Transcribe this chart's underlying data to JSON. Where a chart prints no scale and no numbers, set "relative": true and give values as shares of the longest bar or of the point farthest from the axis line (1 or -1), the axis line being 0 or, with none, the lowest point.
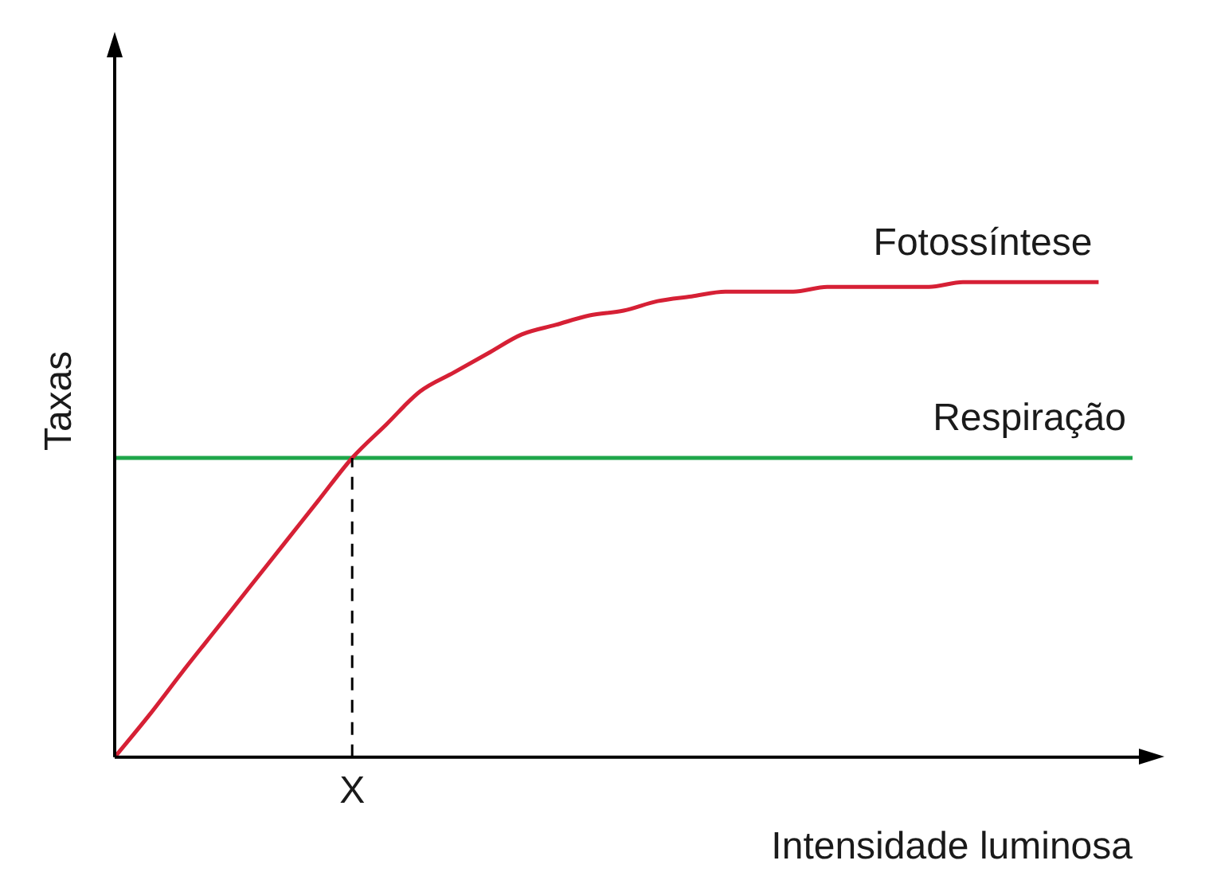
{
  "chart_data": {
    "type": "line",
    "relative": true,
    "xlabel": "Intensidade luminosa",
    "ylabel": "Taxas",
    "categories": [
      null,
      null,
      null,
      null,
      null,
      null,
      null,
      null,
      null,
      null,
      null,
      null,
      null,
      null,
      null,
      null,
      null,
      null,
      null,
      null,
      null,
      null,
      null,
      null,
      null,
      null,
      null,
      null,
      null,
      null,
      null
    ],
    "series": [
      {
        "name": "Fotossíntese",
        "color": "#d62035",
        "values": [
          0,
          0.087,
          0.18,
          0.27,
          0.36,
          0.45,
          0.54,
          0.63,
          0.7,
          0.77,
          0.81,
          0.85,
          0.89,
          0.91,
          0.93,
          0.94,
          0.96,
          0.97,
          0.98,
          0.98,
          0.98,
          0.99,
          0.99,
          0.99,
          0.99,
          1,
          1,
          1,
          1,
          1,
          null
        ]
      },
      {
        "name": "Respiração",
        "color": "#1fa64a",
        "values": [
          0.63,
          0.63,
          0.63,
          0.63,
          0.63,
          0.63,
          0.63,
          0.63,
          0.63,
          0.63,
          0.63,
          0.63,
          0.63,
          0.63,
          0.63,
          0.63,
          0.63,
          0.63,
          0.63,
          0.63,
          0.63,
          0.63,
          0.63,
          0.63,
          0.63,
          0.63,
          0.63,
          0.63,
          0.63,
          0.63,
          0.63
        ]
      }
    ],
    "ref_lines": [
      {
        "axis": "x",
        "label": "X",
        "line_style": "dashed",
        "color": "#000000"
      }
    ],
    "tick_labels": "x",
    "grid": false,
    "legend": false,
    "marker": "none",
    "line_style": "solid"
  }
}
